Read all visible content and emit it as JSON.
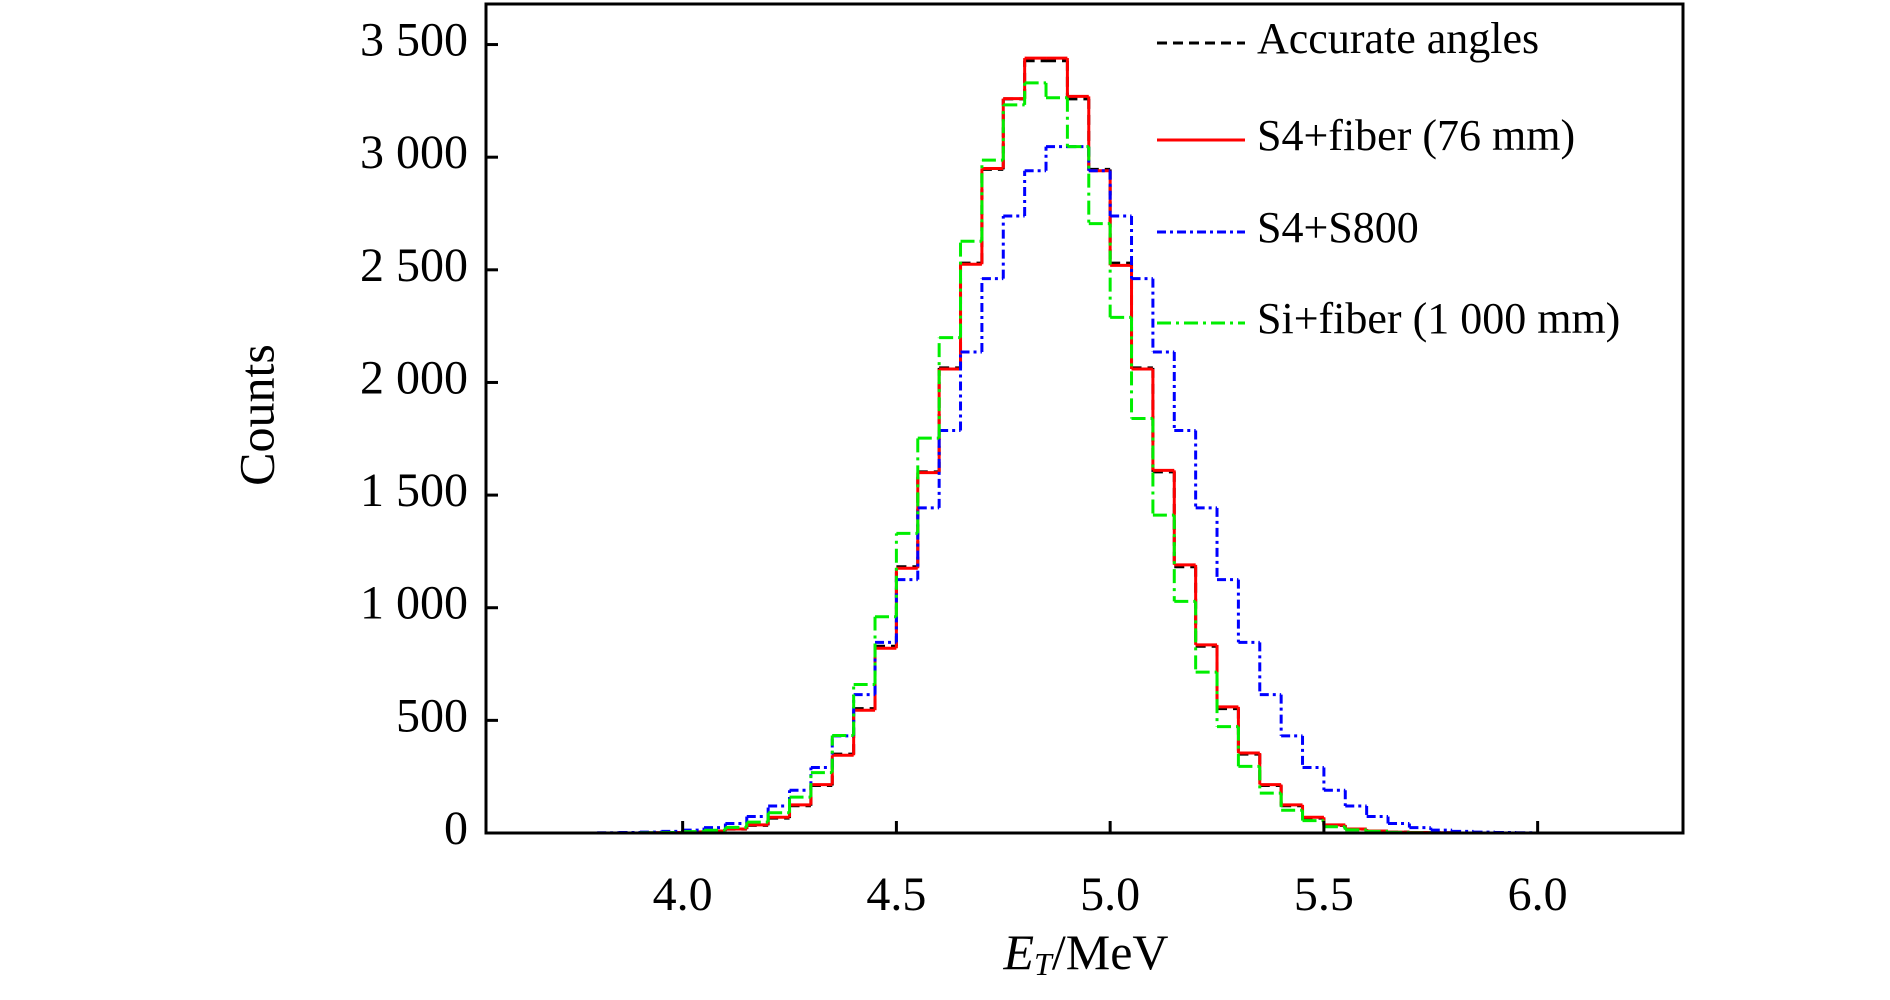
{
  "chart_data": {
    "type": "histogram",
    "ylabel": "Counts",
    "xlabel": {
      "symbol": "E",
      "subscript": "T",
      "unit": "/MeV"
    },
    "bins": [
      3.8,
      3.85,
      3.9,
      3.95,
      4.0,
      4.05,
      4.1,
      4.15,
      4.2,
      4.25,
      4.3,
      4.35,
      4.4,
      4.45,
      4.5,
      4.55,
      4.6,
      4.65,
      4.7,
      4.75,
      4.8,
      4.85,
      4.9,
      4.95,
      5.0,
      5.05,
      5.1,
      5.15,
      5.2,
      5.25,
      5.3,
      5.35,
      5.4,
      5.45,
      5.5,
      5.55,
      5.6,
      5.65,
      5.7,
      5.75,
      5.8,
      5.85,
      5.9,
      5.95,
      6.0,
      6.05,
      6.1,
      6.15,
      6.2
    ],
    "series": [
      {
        "name": "Accurate angles",
        "color": "#000000",
        "dash": "dashed",
        "values": [
          0,
          0,
          1,
          1,
          4,
          8,
          17,
          34,
          66,
          121,
          211,
          350,
          552,
          829,
          1182,
          1603,
          2065,
          2530,
          2946,
          3259,
          3428,
          3428,
          3259,
          2946,
          2530,
          2065,
          1603,
          1182,
          829,
          552,
          350,
          211,
          121,
          66,
          34,
          17,
          8,
          4,
          1,
          1,
          0,
          0,
          0,
          0,
          0,
          0,
          0,
          0
        ]
      },
      {
        "name": "S4+fiber (76 mm)",
        "color": "#ff0000",
        "dash": "solid",
        "values": [
          0,
          0,
          1,
          2,
          5,
          9,
          18,
          36,
          70,
          125,
          215,
          345,
          545,
          820,
          1175,
          1600,
          2060,
          2525,
          2950,
          3260,
          3440,
          3440,
          3270,
          2940,
          2520,
          2060,
          1610,
          1190,
          835,
          560,
          355,
          215,
          125,
          70,
          36,
          18,
          9,
          4,
          2,
          1,
          0,
          0,
          0,
          0,
          0,
          0,
          0,
          0
        ]
      },
      {
        "name": "S4+S800",
        "color": "#0000ff",
        "dash": "dash-dot",
        "values": [
          1,
          2,
          4,
          7,
          13,
          24,
          42,
          73,
          120,
          190,
          291,
          431,
          614,
          846,
          1125,
          1443,
          1787,
          2135,
          2461,
          2739,
          2940,
          3047,
          3047,
          2940,
          2739,
          2461,
          2135,
          1787,
          1443,
          1125,
          846,
          614,
          431,
          291,
          190,
          120,
          73,
          42,
          24,
          13,
          7,
          4,
          2,
          1,
          0,
          0,
          0,
          0
        ]
      },
      {
        "name": "Si+fiber (1 000 mm)",
        "color": "#00ee00",
        "dash": "long-dash-dot",
        "values": [
          0,
          0,
          1,
          2,
          6,
          12,
          25,
          48,
          90,
          159,
          268,
          433,
          659,
          960,
          1330,
          1753,
          2199,
          2627,
          2987,
          3232,
          3330,
          3264,
          3047,
          2705,
          2289,
          1840,
          1411,
          1028,
          714,
          472,
          296,
          177,
          101,
          55,
          28,
          14,
          7,
          3,
          1,
          0,
          0,
          0,
          0,
          0,
          0,
          0,
          0,
          0
        ]
      }
    ],
    "xlim": [
      3.54,
      6.34
    ],
    "ylim": [
      0,
      3680
    ],
    "xticks": [
      {
        "value": 4.0,
        "label": "4.0"
      },
      4.5,
      {
        "value": 5.0,
        "label": "5.0"
      },
      5.5,
      {
        "value": 6.0,
        "label": "6.0"
      }
    ],
    "yticks": [
      0,
      500,
      {
        "value": 1000,
        "label": "1 000"
      },
      {
        "value": 1500,
        "label": "1 500"
      },
      {
        "value": 2000,
        "label": "2 000"
      },
      {
        "value": 2500,
        "label": "2 500"
      },
      {
        "value": 3000,
        "label": "3 000"
      },
      {
        "value": 3500,
        "label": "3 500"
      }
    ],
    "legend": "upper right",
    "grid": false
  }
}
